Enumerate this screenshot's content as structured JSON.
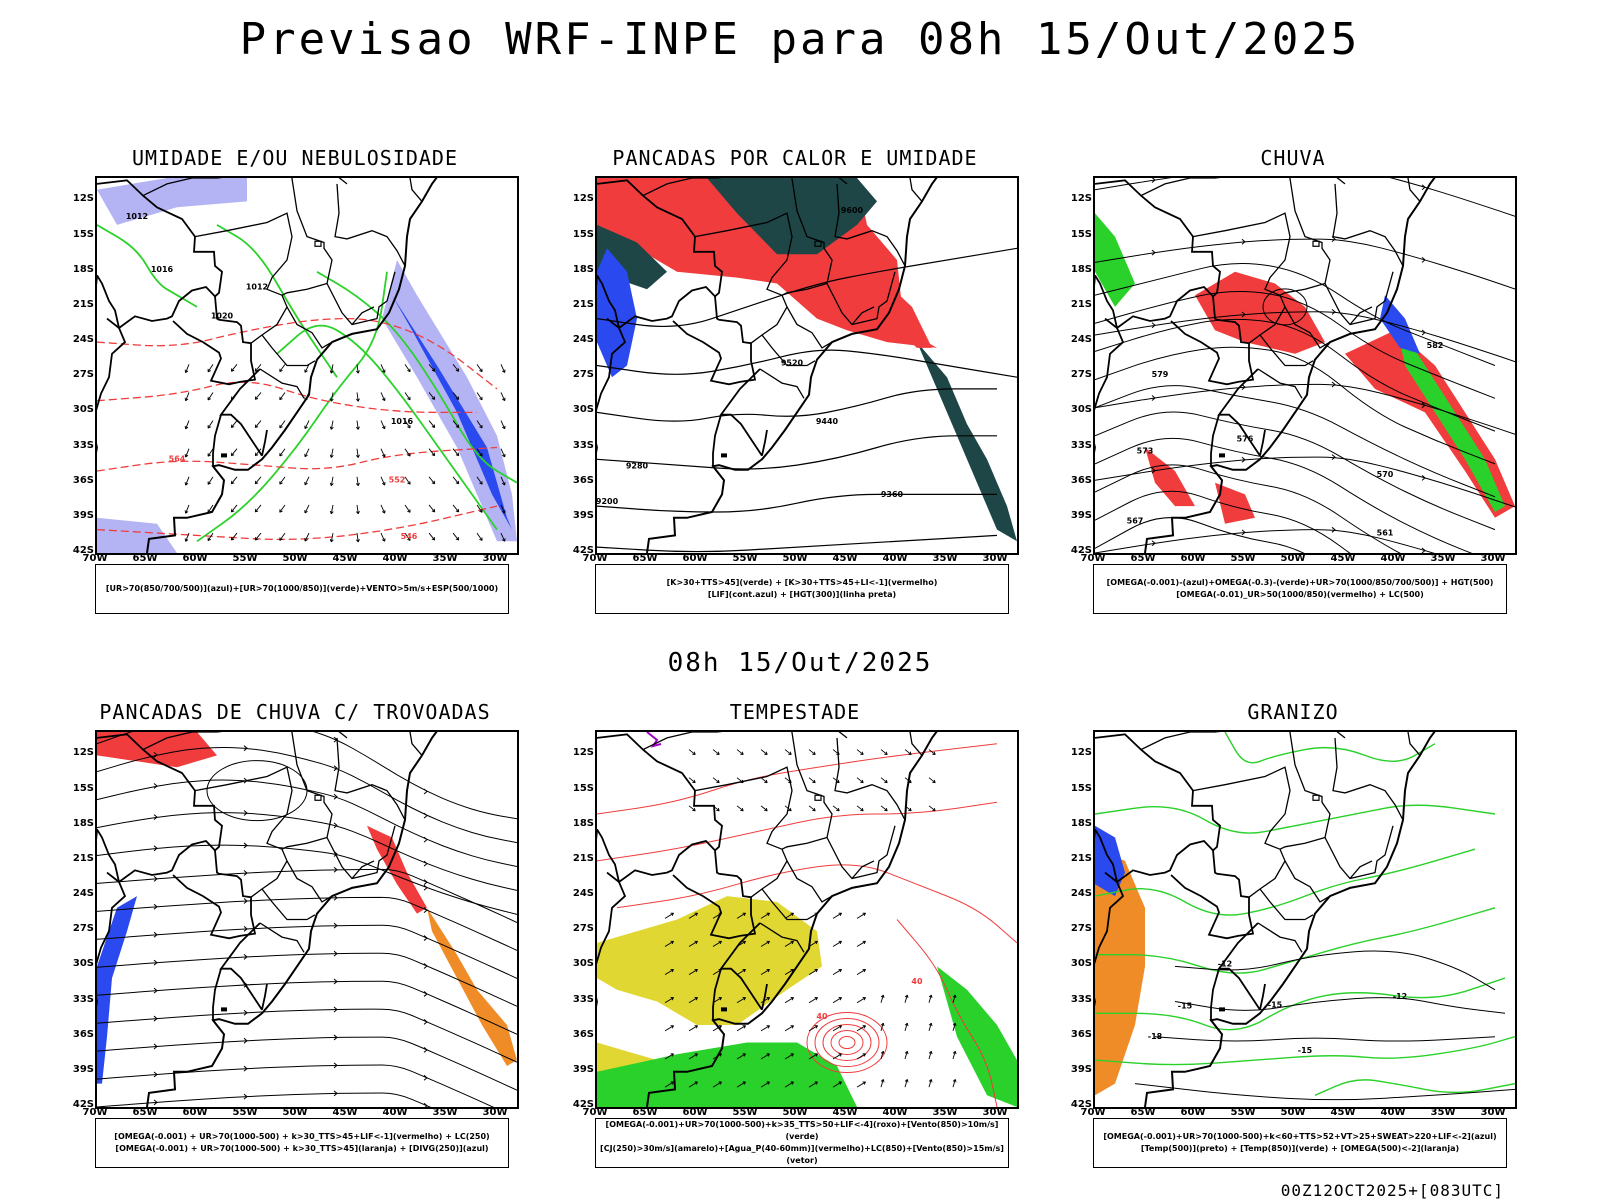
{
  "header": {
    "title": "Previsao WRF-INPE  para 08h 15/Out/2025"
  },
  "mid_title": "08h 15/Out/2025",
  "footer": "00Z12OCT2025+[083UTC]",
  "axes": {
    "lat_labels": [
      "12S",
      "15S",
      "18S",
      "21S",
      "24S",
      "27S",
      "30S",
      "33S",
      "36S",
      "39S",
      "42S"
    ],
    "lon_labels": [
      "70W",
      "65W",
      "60W",
      "55W",
      "50W",
      "45W",
      "40W",
      "35W",
      "30W"
    ]
  },
  "colors": {
    "lavender": "#b4b4f5",
    "green": "#2bd12b",
    "red": "#f03c3c",
    "blue": "#2a4af0",
    "dark_teal": "#1e4646",
    "orange": "#f08c28",
    "yellow": "#e1d732",
    "purple": "#a000c8"
  },
  "panels": [
    {
      "title": "UMIDADE E/OU NEBULOSIDADE",
      "legend": [
        "[UR>70(850/700/500)](azul)+[UR>70(1000/850)](verde)+VENTO>5m/s+ESP(500/1000)"
      ],
      "contour_labels": [
        "1012",
        "1016",
        "1020",
        "1012",
        "1016",
        "564",
        "552",
        "546"
      ]
    },
    {
      "title": "PANCADAS POR CALOR E UMIDADE",
      "legend": [
        "[K>30+TTS>45](verde) + [K>30+TTS>45+LI<-1](vermelho)",
        "[LIF](cont.azul) + [HGT(300)](linha preta)"
      ],
      "contour_labels": [
        "9600",
        "9520",
        "9440",
        "9360",
        "9280",
        "9200"
      ]
    },
    {
      "title": "CHUVA",
      "legend": [
        "[OMEGA(-0.001)-(azul)+OMEGA(-0.3)-(verde)+UR>70(1000/850/700/500)] + HGT(500)",
        "[OMEGA(-0.01)_UR>50(1000/850)(vermelho) + LC(500)"
      ],
      "contour_labels": [
        "582",
        "579",
        "576",
        "573",
        "570",
        "567",
        "561"
      ]
    },
    {
      "title": "PANCADAS DE CHUVA C/ TROVOADAS",
      "legend": [
        "[OMEGA(-0.001) + UR>70(1000-500) + k>30_TTS>45+LIF<-1](vermelho) + LC(250)",
        "[OMEGA(-0.001) + UR>70(1000-500) + k>30_TTS>45](laranja) + [DIVG(250)](azul)"
      ],
      "contour_labels": []
    },
    {
      "title": "TEMPESTADE",
      "legend": [
        "[OMEGA(-0.001)+UR>70(1000-500)+k>35_TTS>50+LIF<-4](roxo)+[Vento(850)>10m/s](verde)",
        "[CJ(250)>30m/s](amarelo)+[Agua_P(40-60mm)](vermelho)+LC(850)+[Vento(850)>15m/s](vetor)"
      ],
      "contour_labels": [
        "40",
        "40"
      ]
    },
    {
      "title": "GRANIZO",
      "legend": [
        "[OMEGA(-0.001)+UR>70(1000-500)+k<60+TTS>52+VT>25+SWEAT>220+LIF<-2](azul)",
        "[Temp(500)](preto) + [Temp(850)](verde) + [OMEGA(500)<-2](laranja)"
      ],
      "contour_labels": [
        "-12",
        "-12",
        "-15",
        "-15",
        "-18",
        "-15"
      ]
    }
  ]
}
